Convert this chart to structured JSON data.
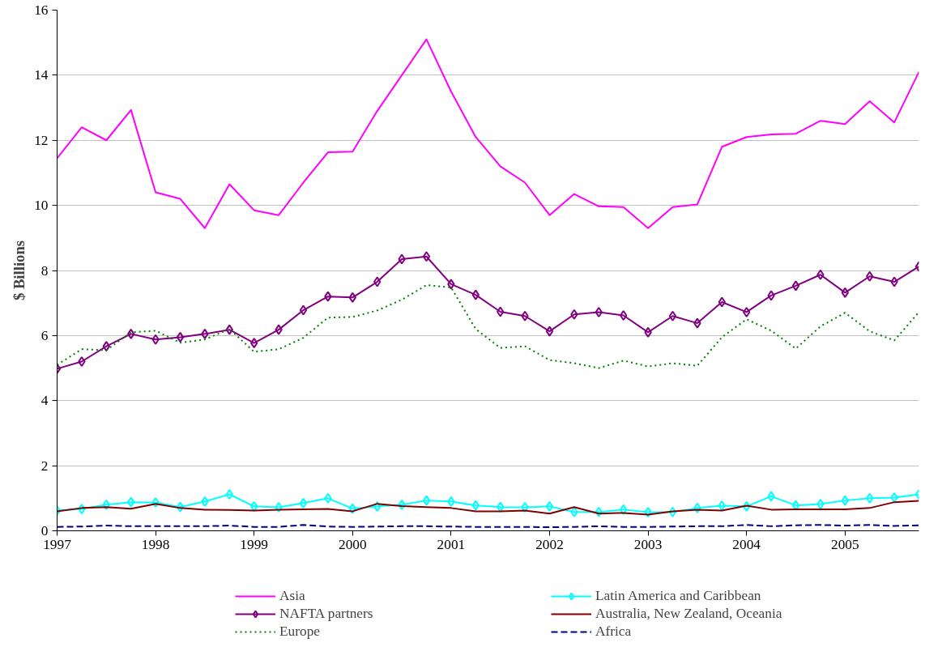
{
  "chart_data": {
    "type": "line",
    "ylabel": "$ Billions",
    "x": [
      1997,
      1997.25,
      1997.5,
      1997.75,
      1998,
      1998.25,
      1998.5,
      1998.75,
      1999,
      1999.25,
      1999.5,
      1999.75,
      2000,
      2000.25,
      2000.5,
      2000.75,
      2001,
      2001.25,
      2001.5,
      2001.75,
      2002,
      2002.25,
      2002.5,
      2002.75,
      2003,
      2003.25,
      2003.5,
      2003.75,
      2004,
      2004.25,
      2004.5,
      2004.75,
      2005,
      2005.25,
      2005.5,
      2005.75
    ],
    "xlim": [
      1997,
      2005.75
    ],
    "xticks": [
      1997,
      1998,
      1999,
      2000,
      2001,
      2002,
      2003,
      2004,
      2005
    ],
    "ylim": [
      0,
      16
    ],
    "yticks": [
      0,
      2,
      4,
      6,
      8,
      10,
      12,
      14,
      16
    ],
    "grid": "y",
    "legend": "bottom",
    "series": [
      {
        "name": "Asia",
        "color": "#ff00ff",
        "marker": "none",
        "line_style": "solid",
        "values": [
          11.45,
          12.4,
          12.0,
          12.93,
          10.4,
          10.2,
          9.3,
          10.65,
          9.85,
          9.7,
          10.7,
          11.63,
          11.65,
          12.9,
          14.0,
          15.1,
          13.5,
          12.1,
          11.2,
          10.7,
          9.7,
          10.35,
          9.97,
          9.95,
          9.3,
          9.95,
          10.03,
          11.8,
          12.1,
          12.18,
          12.2,
          12.6,
          12.5,
          13.2,
          12.55,
          14.1
        ]
      },
      {
        "name": "NAFTA partners",
        "color": "#800080",
        "marker": "diamond",
        "line_style": "solid",
        "values": [
          4.98,
          5.2,
          5.67,
          6.05,
          5.88,
          5.95,
          6.05,
          6.18,
          5.77,
          6.18,
          6.78,
          7.2,
          7.17,
          7.65,
          8.35,
          8.43,
          7.58,
          7.25,
          6.73,
          6.6,
          6.13,
          6.65,
          6.72,
          6.62,
          6.1,
          6.6,
          6.38,
          7.03,
          6.72,
          7.23,
          7.53,
          7.87,
          7.32,
          7.82,
          7.65,
          8.12
        ]
      },
      {
        "name": "Europe",
        "color": "#008000",
        "marker": "none",
        "line_style": "dotted",
        "values": [
          5.1,
          5.58,
          5.55,
          6.1,
          6.15,
          5.78,
          5.88,
          6.2,
          5.5,
          5.58,
          5.93,
          6.55,
          6.57,
          6.77,
          7.1,
          7.55,
          7.48,
          6.2,
          5.62,
          5.67,
          5.25,
          5.15,
          5.0,
          5.23,
          5.05,
          5.15,
          5.07,
          5.95,
          6.5,
          6.15,
          5.6,
          6.28,
          6.7,
          6.13,
          5.85,
          6.72
        ]
      },
      {
        "name": "Latin America and Caribbean",
        "color": "#00ffff",
        "marker": "diamond",
        "line_style": "solid",
        "values": [
          0.62,
          0.67,
          0.8,
          0.88,
          0.87,
          0.73,
          0.9,
          1.12,
          0.75,
          0.72,
          0.85,
          1.0,
          0.68,
          0.75,
          0.8,
          0.93,
          0.9,
          0.78,
          0.73,
          0.72,
          0.75,
          0.58,
          0.58,
          0.65,
          0.57,
          0.58,
          0.7,
          0.77,
          0.75,
          1.06,
          0.78,
          0.82,
          0.93,
          1.0,
          1.02,
          1.12
        ]
      },
      {
        "name": "Australia, New Zealand, Oceania",
        "color": "#800000",
        "marker": "none",
        "line_style": "solid",
        "values": [
          0.6,
          0.7,
          0.73,
          0.68,
          0.83,
          0.7,
          0.65,
          0.64,
          0.62,
          0.65,
          0.66,
          0.67,
          0.6,
          0.83,
          0.76,
          0.73,
          0.7,
          0.6,
          0.6,
          0.62,
          0.53,
          0.73,
          0.53,
          0.55,
          0.5,
          0.6,
          0.65,
          0.62,
          0.77,
          0.65,
          0.66,
          0.66,
          0.66,
          0.7,
          0.88,
          0.92
        ]
      },
      {
        "name": "Africa",
        "color": "#000080",
        "marker": "none",
        "line_style": "dashed",
        "values": [
          0.12,
          0.13,
          0.16,
          0.14,
          0.14,
          0.14,
          0.14,
          0.16,
          0.12,
          0.12,
          0.18,
          0.13,
          0.12,
          0.13,
          0.14,
          0.14,
          0.13,
          0.12,
          0.12,
          0.12,
          0.11,
          0.12,
          0.14,
          0.12,
          0.12,
          0.13,
          0.14,
          0.14,
          0.18,
          0.14,
          0.17,
          0.18,
          0.16,
          0.18,
          0.15,
          0.17
        ]
      }
    ]
  }
}
